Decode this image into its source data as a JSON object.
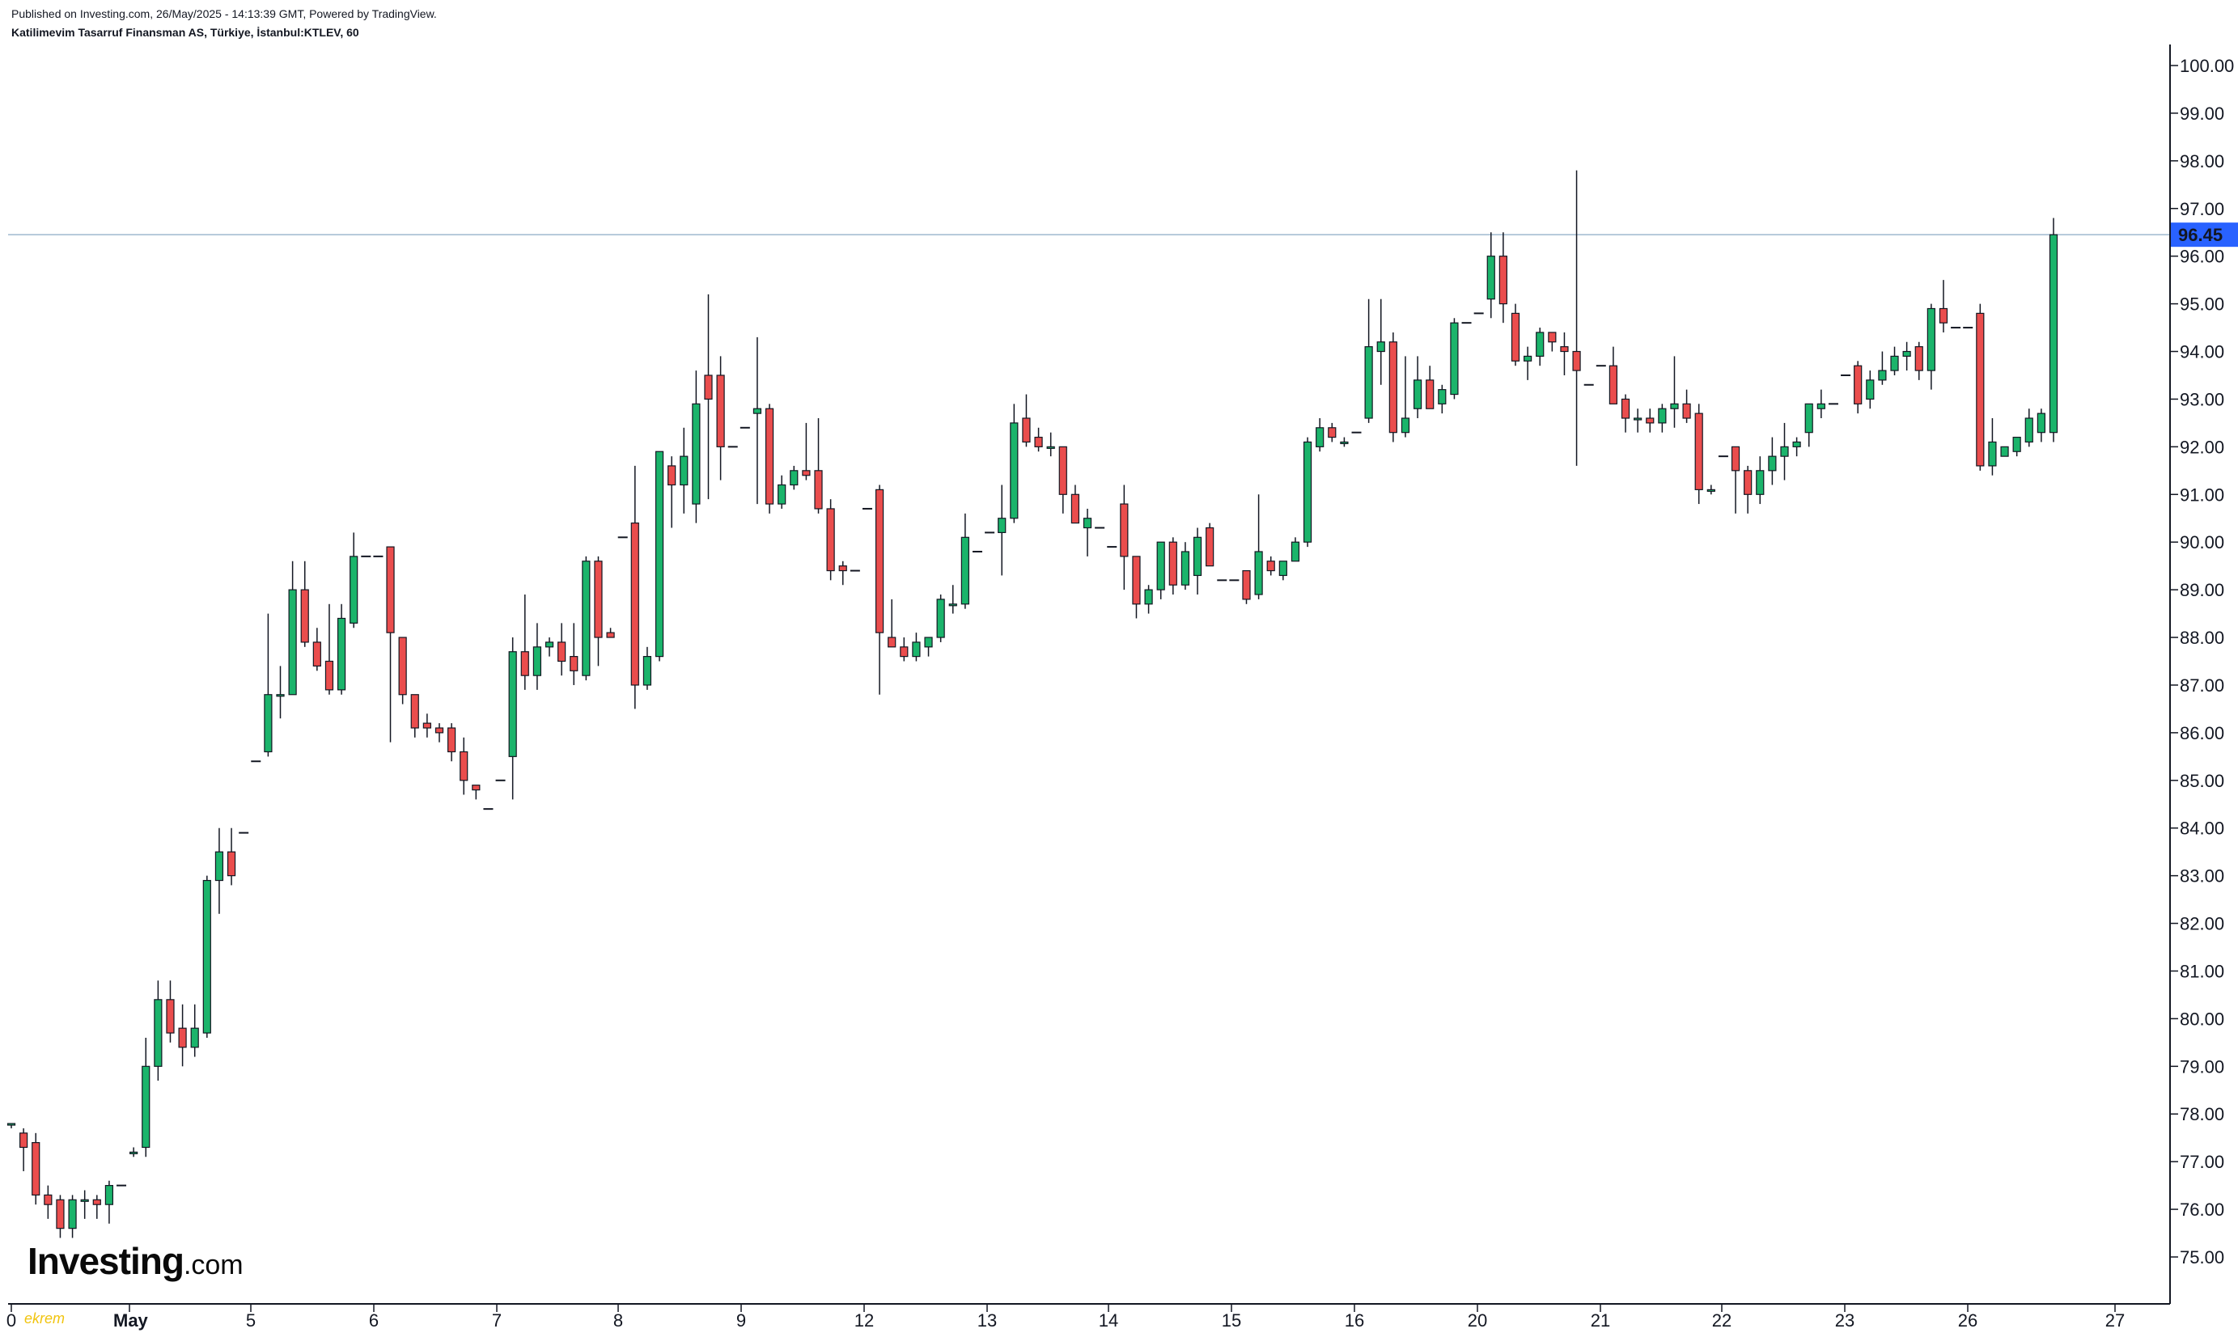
{
  "header": {
    "published": "Published on Investing.com, 26/May/2025 - 14:13:39 GMT, Powered by TradingView.",
    "symbol": "Katilimevim Tasarruf Finansman AS, Türkiye, İstanbul:KTLEV, 60"
  },
  "logo": {
    "main": "Investing",
    "suffix": ".com"
  },
  "watermark": "ekrem",
  "colors": {
    "up": "#1bb46b",
    "down": "#ea4d4d",
    "wick": "#131722",
    "price_line": "#9fb9cf",
    "price_badge": "#2962ff"
  },
  "chart_data": {
    "type": "candlestick",
    "interval": "60",
    "ylim": [
      74.4,
      100.45
    ],
    "y_ticks": [
      "100.00",
      "99.00",
      "98.00",
      "97.00",
      "96.00",
      "95.00",
      "94.00",
      "93.00",
      "92.00",
      "91.00",
      "90.00",
      "89.00",
      "88.00",
      "87.00",
      "86.00",
      "85.00",
      "84.00",
      "83.00",
      "82.00",
      "81.00",
      "80.00",
      "79.00",
      "78.00",
      "77.00",
      "76.00",
      "75.00"
    ],
    "x_ticks": [
      "0",
      "May",
      "5",
      "6",
      "7",
      "8",
      "9",
      "12",
      "13",
      "14",
      "15",
      "16",
      "20",
      "21",
      "22",
      "23",
      "26",
      "27"
    ],
    "last_price": "96.45",
    "candles": [
      {
        "o": 77.8,
        "h": 77.8,
        "l": 77.7,
        "c": 77.8
      },
      {
        "o": 77.6,
        "h": 77.7,
        "l": 76.8,
        "c": 77.3
      },
      {
        "o": 77.4,
        "h": 77.6,
        "l": 76.1,
        "c": 76.3
      },
      {
        "o": 76.3,
        "h": 76.5,
        "l": 75.8,
        "c": 76.1
      },
      {
        "o": 76.2,
        "h": 76.3,
        "l": 75.4,
        "c": 75.6
      },
      {
        "o": 75.6,
        "h": 76.3,
        "l": 75.4,
        "c": 76.2
      },
      {
        "o": 76.2,
        "h": 76.4,
        "l": 75.8,
        "c": 76.2
      },
      {
        "o": 76.2,
        "h": 76.3,
        "l": 75.8,
        "c": 76.1
      },
      {
        "o": 76.1,
        "h": 76.6,
        "l": 75.7,
        "c": 76.5
      },
      {
        "o": 76.5,
        "h": 76.5,
        "l": 76.5,
        "c": 76.5
      },
      {
        "o": 77.2,
        "h": 77.3,
        "l": 77.1,
        "c": 77.2
      },
      {
        "o": 77.3,
        "h": 79.6,
        "l": 77.1,
        "c": 79.0
      },
      {
        "o": 79.0,
        "h": 80.8,
        "l": 78.7,
        "c": 80.4
      },
      {
        "o": 80.4,
        "h": 80.8,
        "l": 79.5,
        "c": 79.7
      },
      {
        "o": 79.8,
        "h": 80.3,
        "l": 79.0,
        "c": 79.4
      },
      {
        "o": 79.4,
        "h": 80.3,
        "l": 79.2,
        "c": 79.8
      },
      {
        "o": 79.7,
        "h": 83.0,
        "l": 79.6,
        "c": 82.9
      },
      {
        "o": 82.9,
        "h": 84.0,
        "l": 82.2,
        "c": 83.5
      },
      {
        "o": 83.5,
        "h": 84.0,
        "l": 82.8,
        "c": 83.0
      },
      {
        "o": 83.9,
        "h": 83.9,
        "l": 83.9,
        "c": 83.9
      },
      {
        "o": 85.4,
        "h": 85.4,
        "l": 85.4,
        "c": 85.4
      },
      {
        "o": 85.6,
        "h": 88.5,
        "l": 85.5,
        "c": 86.8
      },
      {
        "o": 86.8,
        "h": 87.4,
        "l": 86.3,
        "c": 86.8
      },
      {
        "o": 86.8,
        "h": 89.6,
        "l": 86.8,
        "c": 89.0
      },
      {
        "o": 89.0,
        "h": 89.6,
        "l": 87.8,
        "c": 87.9
      },
      {
        "o": 87.9,
        "h": 88.2,
        "l": 87.3,
        "c": 87.4
      },
      {
        "o": 87.5,
        "h": 88.7,
        "l": 86.8,
        "c": 86.9
      },
      {
        "o": 86.9,
        "h": 88.7,
        "l": 86.8,
        "c": 88.4
      },
      {
        "o": 88.3,
        "h": 90.2,
        "l": 88.2,
        "c": 89.7
      },
      {
        "o": 89.7,
        "h": 89.7,
        "l": 89.7,
        "c": 89.7
      },
      {
        "o": 89.7,
        "h": 89.7,
        "l": 89.7,
        "c": 89.7
      },
      {
        "o": 89.9,
        "h": 89.9,
        "l": 85.8,
        "c": 88.1
      },
      {
        "o": 88.0,
        "h": 88.0,
        "l": 86.6,
        "c": 86.8
      },
      {
        "o": 86.8,
        "h": 86.8,
        "l": 85.9,
        "c": 86.1
      },
      {
        "o": 86.2,
        "h": 86.4,
        "l": 85.9,
        "c": 86.1
      },
      {
        "o": 86.1,
        "h": 86.2,
        "l": 85.8,
        "c": 86.0
      },
      {
        "o": 86.1,
        "h": 86.2,
        "l": 85.4,
        "c": 85.6
      },
      {
        "o": 85.6,
        "h": 85.9,
        "l": 84.7,
        "c": 85.0
      },
      {
        "o": 84.9,
        "h": 84.9,
        "l": 84.6,
        "c": 84.8
      },
      {
        "o": 84.4,
        "h": 84.4,
        "l": 84.4,
        "c": 84.4
      },
      {
        "o": 85.0,
        "h": 85.0,
        "l": 85.0,
        "c": 85.0
      },
      {
        "o": 85.5,
        "h": 88.0,
        "l": 84.6,
        "c": 87.7
      },
      {
        "o": 87.7,
        "h": 88.9,
        "l": 86.9,
        "c": 87.2
      },
      {
        "o": 87.2,
        "h": 88.3,
        "l": 86.9,
        "c": 87.8
      },
      {
        "o": 87.8,
        "h": 88.0,
        "l": 87.6,
        "c": 87.9
      },
      {
        "o": 87.9,
        "h": 88.3,
        "l": 87.2,
        "c": 87.5
      },
      {
        "o": 87.6,
        "h": 88.3,
        "l": 87.0,
        "c": 87.3
      },
      {
        "o": 87.2,
        "h": 89.7,
        "l": 87.1,
        "c": 89.6
      },
      {
        "o": 89.6,
        "h": 89.7,
        "l": 87.4,
        "c": 88.0
      },
      {
        "o": 88.1,
        "h": 88.2,
        "l": 88.0,
        "c": 88.0
      },
      {
        "o": 90.1,
        "h": 90.1,
        "l": 90.1,
        "c": 90.1
      },
      {
        "o": 90.4,
        "h": 91.6,
        "l": 86.5,
        "c": 87.0
      },
      {
        "o": 87.0,
        "h": 87.8,
        "l": 86.9,
        "c": 87.6
      },
      {
        "o": 87.6,
        "h": 91.9,
        "l": 87.5,
        "c": 91.9
      },
      {
        "o": 91.6,
        "h": 91.8,
        "l": 90.3,
        "c": 91.2
      },
      {
        "o": 91.2,
        "h": 92.4,
        "l": 90.6,
        "c": 91.8
      },
      {
        "o": 90.8,
        "h": 93.6,
        "l": 90.4,
        "c": 92.9
      },
      {
        "o": 93.5,
        "h": 95.2,
        "l": 90.9,
        "c": 93.0
      },
      {
        "o": 93.5,
        "h": 93.9,
        "l": 91.3,
        "c": 92.0
      },
      {
        "o": 92.0,
        "h": 92.0,
        "l": 92.0,
        "c": 92.0
      },
      {
        "o": 92.4,
        "h": 92.4,
        "l": 92.4,
        "c": 92.4
      },
      {
        "o": 92.7,
        "h": 94.3,
        "l": 90.8,
        "c": 92.8
      },
      {
        "o": 92.8,
        "h": 92.9,
        "l": 90.6,
        "c": 90.8
      },
      {
        "o": 90.8,
        "h": 91.4,
        "l": 90.7,
        "c": 91.2
      },
      {
        "o": 91.2,
        "h": 91.6,
        "l": 91.1,
        "c": 91.5
      },
      {
        "o": 91.5,
        "h": 92.5,
        "l": 91.3,
        "c": 91.4
      },
      {
        "o": 91.5,
        "h": 92.6,
        "l": 90.6,
        "c": 90.7
      },
      {
        "o": 90.7,
        "h": 90.9,
        "l": 89.2,
        "c": 89.4
      },
      {
        "o": 89.5,
        "h": 89.6,
        "l": 89.1,
        "c": 89.4
      },
      {
        "o": 89.4,
        "h": 89.4,
        "l": 89.4,
        "c": 89.4
      },
      {
        "o": 90.7,
        "h": 90.7,
        "l": 90.7,
        "c": 90.7
      },
      {
        "o": 91.1,
        "h": 91.2,
        "l": 86.8,
        "c": 88.1
      },
      {
        "o": 88.0,
        "h": 88.8,
        "l": 87.8,
        "c": 87.8
      },
      {
        "o": 87.8,
        "h": 88.0,
        "l": 87.5,
        "c": 87.6
      },
      {
        "o": 87.6,
        "h": 88.1,
        "l": 87.5,
        "c": 87.9
      },
      {
        "o": 87.8,
        "h": 88.0,
        "l": 87.6,
        "c": 88.0
      },
      {
        "o": 88.0,
        "h": 88.9,
        "l": 87.9,
        "c": 88.8
      },
      {
        "o": 88.7,
        "h": 89.1,
        "l": 88.5,
        "c": 88.7
      },
      {
        "o": 88.7,
        "h": 90.6,
        "l": 88.6,
        "c": 90.1
      },
      {
        "o": 89.8,
        "h": 89.8,
        "l": 89.8,
        "c": 89.8
      },
      {
        "o": 90.2,
        "h": 90.2,
        "l": 90.2,
        "c": 90.2
      },
      {
        "o": 90.2,
        "h": 91.2,
        "l": 89.3,
        "c": 90.5
      },
      {
        "o": 90.5,
        "h": 92.9,
        "l": 90.4,
        "c": 92.5
      },
      {
        "o": 92.6,
        "h": 93.1,
        "l": 92.0,
        "c": 92.1
      },
      {
        "o": 92.2,
        "h": 92.4,
        "l": 91.9,
        "c": 92.0
      },
      {
        "o": 92.0,
        "h": 92.3,
        "l": 91.8,
        "c": 92.0
      },
      {
        "o": 92.0,
        "h": 92.0,
        "l": 90.6,
        "c": 91.0
      },
      {
        "o": 91.0,
        "h": 91.2,
        "l": 90.4,
        "c": 90.4
      },
      {
        "o": 90.3,
        "h": 90.7,
        "l": 89.7,
        "c": 90.5
      },
      {
        "o": 90.3,
        "h": 90.3,
        "l": 90.3,
        "c": 90.3
      },
      {
        "o": 89.9,
        "h": 89.9,
        "l": 89.9,
        "c": 89.9
      },
      {
        "o": 90.8,
        "h": 91.2,
        "l": 89.0,
        "c": 89.7
      },
      {
        "o": 89.7,
        "h": 89.7,
        "l": 88.4,
        "c": 88.7
      },
      {
        "o": 88.7,
        "h": 89.1,
        "l": 88.5,
        "c": 89.0
      },
      {
        "o": 89.0,
        "h": 90.0,
        "l": 88.8,
        "c": 90.0
      },
      {
        "o": 90.0,
        "h": 90.1,
        "l": 88.9,
        "c": 89.1
      },
      {
        "o": 89.1,
        "h": 90.0,
        "l": 89.0,
        "c": 89.8
      },
      {
        "o": 89.3,
        "h": 90.3,
        "l": 88.9,
        "c": 90.1
      },
      {
        "o": 90.3,
        "h": 90.4,
        "l": 89.5,
        "c": 89.5
      },
      {
        "o": 89.2,
        "h": 89.2,
        "l": 89.2,
        "c": 89.2
      },
      {
        "o": 89.2,
        "h": 89.2,
        "l": 89.2,
        "c": 89.2
      },
      {
        "o": 89.4,
        "h": 89.4,
        "l": 88.7,
        "c": 88.8
      },
      {
        "o": 88.9,
        "h": 91.0,
        "l": 88.8,
        "c": 89.8
      },
      {
        "o": 89.6,
        "h": 89.7,
        "l": 89.3,
        "c": 89.4
      },
      {
        "o": 89.3,
        "h": 89.6,
        "l": 89.2,
        "c": 89.6
      },
      {
        "o": 89.6,
        "h": 90.1,
        "l": 89.6,
        "c": 90.0
      },
      {
        "o": 90.0,
        "h": 92.2,
        "l": 89.9,
        "c": 92.1
      },
      {
        "o": 92.0,
        "h": 92.6,
        "l": 91.9,
        "c": 92.4
      },
      {
        "o": 92.4,
        "h": 92.5,
        "l": 92.1,
        "c": 92.2
      },
      {
        "o": 92.1,
        "h": 92.2,
        "l": 92.0,
        "c": 92.1
      },
      {
        "o": 92.3,
        "h": 92.3,
        "l": 92.3,
        "c": 92.3
      },
      {
        "o": 92.6,
        "h": 95.1,
        "l": 92.5,
        "c": 94.1
      },
      {
        "o": 94.0,
        "h": 95.1,
        "l": 93.3,
        "c": 94.2
      },
      {
        "o": 94.2,
        "h": 94.4,
        "l": 92.1,
        "c": 92.3
      },
      {
        "o": 92.3,
        "h": 93.9,
        "l": 92.2,
        "c": 92.6
      },
      {
        "o": 92.8,
        "h": 93.9,
        "l": 92.6,
        "c": 93.4
      },
      {
        "o": 93.4,
        "h": 93.7,
        "l": 92.8,
        "c": 92.8
      },
      {
        "o": 92.9,
        "h": 93.3,
        "l": 92.7,
        "c": 93.2
      },
      {
        "o": 93.1,
        "h": 94.7,
        "l": 93.0,
        "c": 94.6
      },
      {
        "o": 94.6,
        "h": 94.6,
        "l": 94.6,
        "c": 94.6
      },
      {
        "o": 94.8,
        "h": 94.8,
        "l": 94.8,
        "c": 94.8
      },
      {
        "o": 95.1,
        "h": 96.5,
        "l": 94.7,
        "c": 96.0
      },
      {
        "o": 96.0,
        "h": 96.5,
        "l": 94.6,
        "c": 95.0
      },
      {
        "o": 94.8,
        "h": 95.0,
        "l": 93.7,
        "c": 93.8
      },
      {
        "o": 93.8,
        "h": 94.1,
        "l": 93.4,
        "c": 93.9
      },
      {
        "o": 93.9,
        "h": 94.5,
        "l": 93.7,
        "c": 94.4
      },
      {
        "o": 94.4,
        "h": 94.4,
        "l": 94.0,
        "c": 94.2
      },
      {
        "o": 94.1,
        "h": 94.4,
        "l": 93.5,
        "c": 94.0
      },
      {
        "o": 94.0,
        "h": 97.8,
        "l": 91.6,
        "c": 93.6
      },
      {
        "o": 93.3,
        "h": 93.3,
        "l": 93.3,
        "c": 93.3
      },
      {
        "o": 93.7,
        "h": 93.7,
        "l": 93.7,
        "c": 93.7
      },
      {
        "o": 93.7,
        "h": 94.1,
        "l": 92.9,
        "c": 92.9
      },
      {
        "o": 93.0,
        "h": 93.1,
        "l": 92.3,
        "c": 92.6
      },
      {
        "o": 92.6,
        "h": 92.8,
        "l": 92.3,
        "c": 92.6
      },
      {
        "o": 92.6,
        "h": 92.8,
        "l": 92.3,
        "c": 92.5
      },
      {
        "o": 92.5,
        "h": 92.9,
        "l": 92.3,
        "c": 92.8
      },
      {
        "o": 92.8,
        "h": 93.9,
        "l": 92.4,
        "c": 92.9
      },
      {
        "o": 92.9,
        "h": 93.2,
        "l": 92.5,
        "c": 92.6
      },
      {
        "o": 92.7,
        "h": 92.9,
        "l": 90.8,
        "c": 91.1
      },
      {
        "o": 91.1,
        "h": 91.2,
        "l": 91.0,
        "c": 91.1
      },
      {
        "o": 91.8,
        "h": 91.8,
        "l": 91.8,
        "c": 91.8
      },
      {
        "o": 92.0,
        "h": 92.0,
        "l": 90.6,
        "c": 91.5
      },
      {
        "o": 91.5,
        "h": 91.6,
        "l": 90.6,
        "c": 91.0
      },
      {
        "o": 91.0,
        "h": 91.8,
        "l": 90.8,
        "c": 91.5
      },
      {
        "o": 91.5,
        "h": 92.2,
        "l": 91.2,
        "c": 91.8
      },
      {
        "o": 91.8,
        "h": 92.5,
        "l": 91.3,
        "c": 92.0
      },
      {
        "o": 92.0,
        "h": 92.2,
        "l": 91.8,
        "c": 92.1
      },
      {
        "o": 92.3,
        "h": 92.9,
        "l": 92.0,
        "c": 92.9
      },
      {
        "o": 92.8,
        "h": 93.2,
        "l": 92.6,
        "c": 92.9
      },
      {
        "o": 92.9,
        "h": 92.9,
        "l": 92.9,
        "c": 92.9
      },
      {
        "o": 93.5,
        "h": 93.5,
        "l": 93.5,
        "c": 93.5
      },
      {
        "o": 93.7,
        "h": 93.8,
        "l": 92.7,
        "c": 92.9
      },
      {
        "o": 93.0,
        "h": 93.6,
        "l": 92.8,
        "c": 93.4
      },
      {
        "o": 93.4,
        "h": 94.0,
        "l": 93.3,
        "c": 93.6
      },
      {
        "o": 93.6,
        "h": 94.1,
        "l": 93.5,
        "c": 93.9
      },
      {
        "o": 93.9,
        "h": 94.2,
        "l": 93.6,
        "c": 94.0
      },
      {
        "o": 94.1,
        "h": 94.2,
        "l": 93.4,
        "c": 93.6
      },
      {
        "o": 93.6,
        "h": 95.0,
        "l": 93.2,
        "c": 94.9
      },
      {
        "o": 94.9,
        "h": 95.5,
        "l": 94.4,
        "c": 94.6
      },
      {
        "o": 94.5,
        "h": 94.5,
        "l": 94.5,
        "c": 94.5
      },
      {
        "o": 94.5,
        "h": 94.5,
        "l": 94.5,
        "c": 94.5
      },
      {
        "o": 94.8,
        "h": 95.0,
        "l": 91.5,
        "c": 91.6
      },
      {
        "o": 91.6,
        "h": 92.6,
        "l": 91.4,
        "c": 92.1
      },
      {
        "o": 91.8,
        "h": 92.0,
        "l": 91.8,
        "c": 92.0
      },
      {
        "o": 91.9,
        "h": 92.2,
        "l": 91.8,
        "c": 92.2
      },
      {
        "o": 92.1,
        "h": 92.8,
        "l": 92.0,
        "c": 92.6
      },
      {
        "o": 92.3,
        "h": 92.8,
        "l": 92.1,
        "c": 92.7
      },
      {
        "o": 92.3,
        "h": 96.8,
        "l": 92.1,
        "c": 96.45
      }
    ]
  }
}
